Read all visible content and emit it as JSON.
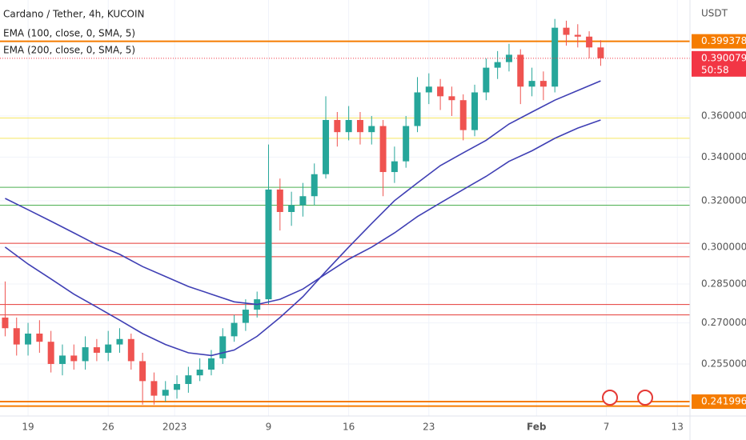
{
  "chart_data": {
    "type": "candlestick",
    "title": "Cardano / Tether, 4h, KUCOIN",
    "indicators": [
      "EMA (100, close, 0, SMA, 5)",
      "EMA (200, close, 0, SMA, 5)"
    ],
    "currency": "USDT",
    "log_scale": true,
    "up_color": "#26a69a",
    "down_color": "#ef5350",
    "xlim": [
      -2.45,
      57.8
    ],
    "ylim": [
      0.2372,
      0.423
    ],
    "xticks": [
      {
        "value": 0,
        "label": "19"
      },
      {
        "value": 7,
        "label": "26"
      },
      {
        "value": 12.8,
        "label": "2023"
      },
      {
        "value": 21,
        "label": "9"
      },
      {
        "value": 28,
        "label": "16"
      },
      {
        "value": 35,
        "label": "23"
      },
      {
        "value": 44.4,
        "label": "Feb"
      },
      {
        "value": 50.5,
        "label": "7"
      },
      {
        "value": 56.7,
        "label": "13"
      }
    ],
    "yticks": [
      {
        "value": 0.36,
        "label": "0.360000"
      },
      {
        "value": 0.34,
        "label": "0.340000"
      },
      {
        "value": 0.32,
        "label": "0.320000"
      },
      {
        "value": 0.3,
        "label": "0.300000"
      },
      {
        "value": 0.285,
        "label": "0.285000"
      },
      {
        "value": 0.27,
        "label": "0.270000"
      },
      {
        "value": 0.255,
        "label": "0.255000"
      }
    ],
    "x": [
      -2,
      -1,
      0,
      1,
      2,
      3,
      4,
      5,
      6,
      7,
      8,
      9,
      10,
      11,
      12,
      13,
      14,
      15,
      16,
      17,
      18,
      19,
      20,
      21,
      22,
      23,
      24,
      25,
      26,
      27,
      28,
      29,
      30,
      31,
      32,
      33,
      34,
      35,
      36,
      37,
      38,
      39,
      40,
      41,
      42,
      43,
      44,
      45,
      46,
      47,
      48,
      49,
      50
    ],
    "open": [
      0.272,
      0.268,
      0.262,
      0.266,
      0.263,
      0.255,
      0.258,
      0.256,
      0.261,
      0.259,
      0.262,
      0.264,
      0.256,
      0.249,
      0.244,
      0.246,
      0.248,
      0.251,
      0.253,
      0.257,
      0.265,
      0.27,
      0.275,
      0.279,
      0.325,
      0.315,
      0.318,
      0.322,
      0.332,
      0.358,
      0.352,
      0.358,
      0.352,
      0.355,
      0.333,
      0.338,
      0.355,
      0.372,
      0.375,
      0.37,
      0.368,
      0.353,
      0.372,
      0.385,
      0.388,
      0.392,
      0.375,
      0.378,
      0.375,
      0.407,
      0.403,
      0.402,
      0.396
    ],
    "high": [
      0.286,
      0.272,
      0.27,
      0.271,
      0.267,
      0.262,
      0.262,
      0.265,
      0.264,
      0.267,
      0.268,
      0.266,
      0.259,
      0.252,
      0.249,
      0.251,
      0.254,
      0.257,
      0.26,
      0.268,
      0.273,
      0.279,
      0.282,
      0.346,
      0.33,
      0.324,
      0.328,
      0.337,
      0.37,
      0.362,
      0.365,
      0.362,
      0.36,
      0.358,
      0.345,
      0.36,
      0.38,
      0.382,
      0.379,
      0.375,
      0.371,
      0.376,
      0.39,
      0.394,
      0.398,
      0.395,
      0.385,
      0.383,
      0.412,
      0.411,
      0.409,
      0.405,
      0.4
    ],
    "low": [
      0.265,
      0.258,
      0.258,
      0.259,
      0.252,
      0.251,
      0.253,
      0.253,
      0.256,
      0.256,
      0.259,
      0.253,
      0.241,
      0.241,
      0.242,
      0.243,
      0.245,
      0.249,
      0.251,
      0.255,
      0.263,
      0.267,
      0.272,
      0.277,
      0.307,
      0.309,
      0.313,
      0.318,
      0.33,
      0.345,
      0.348,
      0.346,
      0.346,
      0.322,
      0.328,
      0.335,
      0.352,
      0.366,
      0.363,
      0.36,
      0.348,
      0.35,
      0.368,
      0.379,
      0.383,
      0.366,
      0.37,
      0.368,
      0.372,
      0.397,
      0.396,
      0.39,
      0.386
    ],
    "close": [
      0.268,
      0.262,
      0.266,
      0.263,
      0.255,
      0.258,
      0.256,
      0.261,
      0.259,
      0.262,
      0.264,
      0.256,
      0.249,
      0.244,
      0.246,
      0.248,
      0.251,
      0.253,
      0.257,
      0.265,
      0.27,
      0.275,
      0.279,
      0.325,
      0.315,
      0.318,
      0.322,
      0.332,
      0.358,
      0.352,
      0.358,
      0.352,
      0.355,
      0.333,
      0.338,
      0.355,
      0.372,
      0.375,
      0.37,
      0.368,
      0.353,
      0.372,
      0.385,
      0.388,
      0.392,
      0.375,
      0.378,
      0.375,
      0.407,
      0.403,
      0.402,
      0.396,
      0.390079
    ],
    "lines": [
      {
        "color": "#3f3fb4",
        "x": [
          -2,
          0,
          2,
          4,
          6,
          8,
          10,
          12,
          14,
          16,
          18,
          20,
          22,
          24,
          26,
          28,
          30,
          32,
          34,
          36,
          38,
          40,
          42,
          44,
          46,
          48,
          50
        ],
        "values": [
          0.3,
          0.293,
          0.287,
          0.281,
          0.276,
          0.271,
          0.266,
          0.262,
          0.259,
          0.258,
          0.26,
          0.265,
          0.272,
          0.28,
          0.29,
          0.3,
          0.31,
          0.32,
          0.328,
          0.336,
          0.342,
          0.348,
          0.356,
          0.362,
          0.368,
          0.373,
          0.378
        ]
      },
      {
        "color": "#3f3fb4",
        "x": [
          -2,
          0,
          2,
          4,
          6,
          8,
          10,
          12,
          14,
          16,
          18,
          20,
          22,
          24,
          26,
          28,
          30,
          32,
          34,
          36,
          38,
          40,
          42,
          44,
          46,
          48,
          50
        ],
        "values": [
          0.321,
          0.316,
          0.311,
          0.306,
          0.301,
          0.297,
          0.292,
          0.288,
          0.284,
          0.281,
          0.278,
          0.277,
          0.279,
          0.283,
          0.289,
          0.295,
          0.3,
          0.306,
          0.313,
          0.319,
          0.325,
          0.331,
          0.338,
          0.343,
          0.349,
          0.354,
          0.358
        ]
      }
    ],
    "hlines": [
      {
        "value": 0.399378,
        "color": "#f57c00"
      },
      {
        "value": 0.359,
        "color": "#f5e663"
      },
      {
        "value": 0.349,
        "color": "#f5e663"
      },
      {
        "value": 0.326,
        "color": "#4caf50"
      },
      {
        "value": 0.318,
        "color": "#4caf50"
      },
      {
        "value": 0.3016,
        "color": "#e53935"
      },
      {
        "value": 0.296,
        "color": "#e53935"
      },
      {
        "value": 0.277,
        "color": "#e53935"
      },
      {
        "value": 0.273,
        "color": "#e53935"
      },
      {
        "value": 0.241996,
        "color": "#f57c00"
      },
      {
        "value": 0.2405,
        "color": "#f57c00"
      }
    ],
    "price_labels": [
      {
        "value": 0.399378,
        "color": "#f57c00"
      },
      {
        "value": 0.390079,
        "color": "#f23645"
      },
      {
        "value": 0.241996,
        "color": "#f57c00"
      }
    ],
    "countdown": "50:58"
  }
}
